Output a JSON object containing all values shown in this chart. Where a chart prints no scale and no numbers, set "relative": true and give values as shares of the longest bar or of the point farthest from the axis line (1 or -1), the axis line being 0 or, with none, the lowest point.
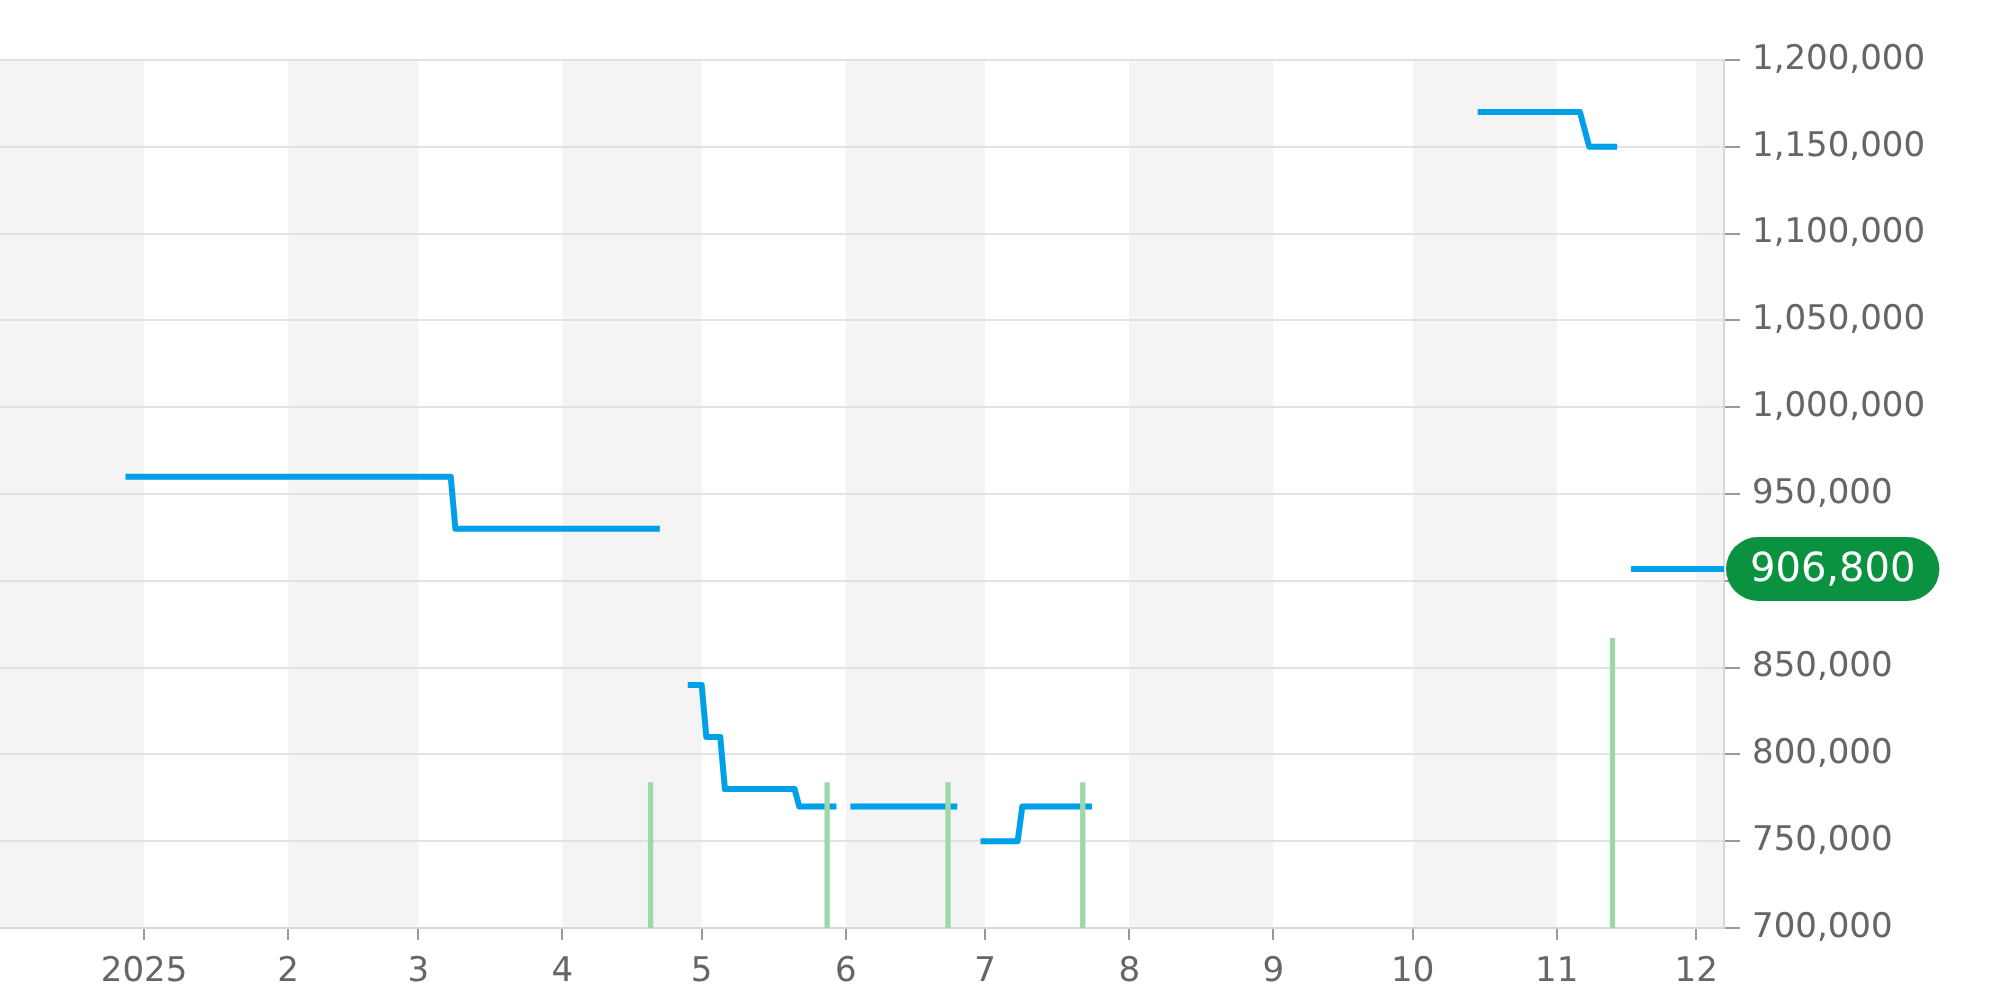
{
  "chart_data": [
    {
      "type": "line",
      "color": "#00a0e9",
      "xlim": [
        "2024-12-01",
        "2025-12-07"
      ],
      "xticks": [
        {
          "value": "2025-01-01",
          "label": "2025"
        },
        {
          "value": "2025-02-01",
          "label": "2"
        },
        {
          "value": "2025-03-01",
          "label": "3"
        },
        {
          "value": "2025-04-01",
          "label": "4"
        },
        {
          "value": "2025-05-01",
          "label": "5"
        },
        {
          "value": "2025-06-01",
          "label": "6"
        },
        {
          "value": "2025-07-01",
          "label": "7"
        },
        {
          "value": "2025-08-01",
          "label": "8"
        },
        {
          "value": "2025-09-01",
          "label": "9"
        },
        {
          "value": "2025-10-01",
          "label": "10"
        },
        {
          "value": "2025-11-01",
          "label": "11"
        },
        {
          "value": "2025-12-01",
          "label": "12"
        }
      ],
      "ylim": [
        700000,
        1200000
      ],
      "yticks": [
        {
          "value": 700000,
          "label": "700,000"
        },
        {
          "value": 750000,
          "label": "750,000"
        },
        {
          "value": 800000,
          "label": "800,000"
        },
        {
          "value": 850000,
          "label": "850,000"
        },
        {
          "value": 900000,
          "label": null
        },
        {
          "value": 950000,
          "label": "950,000"
        },
        {
          "value": 1000000,
          "label": "1,000,000"
        },
        {
          "value": 1050000,
          "label": "1,050,000"
        },
        {
          "value": 1100000,
          "label": "1,100,000"
        },
        {
          "value": 1150000,
          "label": "1,150,000"
        },
        {
          "value": 1200000,
          "label": "1,200,000"
        }
      ],
      "grid": "y",
      "x": [
        "2024-12-28",
        "2025-03-08",
        "2025-03-09",
        "2025-04-22",
        "2025-04-25",
        "2025-04-28",
        "2025-05-01",
        "2025-05-02",
        "2025-05-05",
        "2025-05-06",
        "2025-05-21",
        "2025-05-22",
        "2025-05-30",
        "2025-06-01",
        "2025-06-02",
        "2025-06-25",
        "2025-06-28",
        "2025-06-30",
        "2025-07-08",
        "2025-07-09",
        "2025-07-24",
        "2025-09-01",
        "2025-10-15",
        "2025-11-06",
        "2025-11-08",
        "2025-11-14",
        "2025-11-16",
        "2025-11-17",
        "2025-12-07"
      ],
      "values": [
        960000,
        960000,
        930000,
        930000,
        null,
        840000,
        840000,
        810000,
        810000,
        780000,
        780000,
        770000,
        770000,
        null,
        770000,
        770000,
        null,
        750000,
        750000,
        770000,
        770000,
        null,
        1170000,
        1170000,
        1150000,
        1150000,
        null,
        906800,
        906800
      ],
      "bands": [
        {
          "axis": "x",
          "from": "2024-12-01",
          "to": "2025-01-01",
          "color": "#f4f4f4"
        },
        {
          "axis": "x",
          "from": "2025-02-01",
          "to": "2025-03-01",
          "color": "#f4f4f4"
        },
        {
          "axis": "x",
          "from": "2025-04-01",
          "to": "2025-05-01",
          "color": "#f4f4f4"
        },
        {
          "axis": "x",
          "from": "2025-06-01",
          "to": "2025-07-01",
          "color": "#f4f4f4"
        },
        {
          "axis": "x",
          "from": "2025-08-01",
          "to": "2025-09-01",
          "color": "#f4f4f4"
        },
        {
          "axis": "x",
          "from": "2025-10-01",
          "to": "2025-11-01",
          "color": "#f4f4f4"
        },
        {
          "axis": "x",
          "from": "2025-12-01",
          "to": "2025-12-07",
          "color": "#f4f4f4"
        }
      ],
      "annotations": [
        {
          "text": "906,800",
          "x": "2025-12-07",
          "y": 906800
        }
      ]
    },
    {
      "type": "bar",
      "relative": true,
      "color": "#9fd8a8",
      "tick_labels": false,
      "xlim": [
        "2024-12-01",
        "2025-12-07"
      ],
      "x": [
        "2025-04-20",
        "2025-05-28",
        "2025-06-23",
        "2025-07-22",
        "2025-11-13"
      ],
      "values": [
        0.5,
        0.5,
        0.5,
        0.5,
        1
      ]
    }
  ]
}
